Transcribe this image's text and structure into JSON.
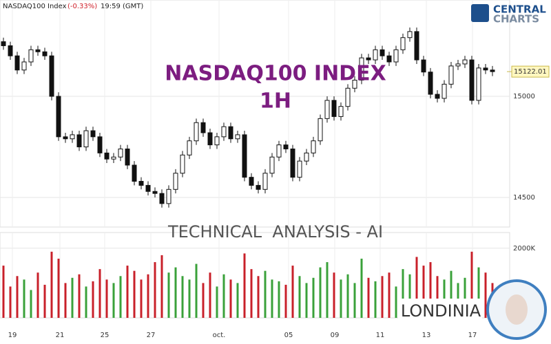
{
  "header": {
    "symbol": "NASDAQ100 Index",
    "change": "(-0.33%)",
    "time": "19:59 (GMT)"
  },
  "logo": {
    "line1": "CENTRAL",
    "line2": "CHARTS"
  },
  "overlay": {
    "title": "NASDAQ100 INDEX",
    "timeframe": "1H",
    "banner": "TECHNICAL  ANALYSIS - AI",
    "brand": "LONDINIA"
  },
  "chart_data": {
    "type": "candlestick",
    "up_color": "#ffffff",
    "down_color": "#111111",
    "grid": true,
    "open": [
      15270,
      15250,
      15200,
      15130,
      15170,
      15230,
      15220,
      15200,
      15000,
      14800,
      14790,
      14810,
      14750,
      14830,
      14800,
      14720,
      14690,
      14700,
      14740,
      14660,
      14580,
      14560,
      14530,
      14520,
      14470,
      14540,
      14620,
      14710,
      14780,
      14870,
      14820,
      14760,
      14800,
      14850,
      14790,
      14810,
      14600,
      14560,
      14540,
      14620,
      14700,
      14760,
      14740,
      14600,
      14680,
      14720,
      14780,
      14890,
      14980,
      14900,
      14950,
      15040,
      15080,
      15190,
      15180,
      15230,
      15200,
      15170,
      15230,
      15290,
      15320,
      15180,
      15120,
      15010,
      14990,
      15060,
      15150,
      15160,
      15180,
      14980,
      15140,
      15130
    ],
    "high": [
      15290,
      15270,
      15220,
      15190,
      15250,
      15250,
      15240,
      15220,
      15020,
      14820,
      14830,
      14830,
      14850,
      14850,
      14820,
      14740,
      14720,
      14760,
      14760,
      14680,
      14600,
      14580,
      14550,
      14540,
      14560,
      14640,
      14730,
      14800,
      14890,
      14890,
      14840,
      14820,
      14870,
      14870,
      14830,
      14830,
      14620,
      14580,
      14640,
      14720,
      14780,
      14780,
      14760,
      14700,
      14740,
      14800,
      14910,
      15000,
      15000,
      14970,
      15060,
      15100,
      15210,
      15210,
      15250,
      15250,
      15220,
      15250,
      15310,
      15340,
      15340,
      15200,
      15140,
      15030,
      15080,
      15170,
      15180,
      15200,
      15200,
      15160,
      15160,
      15150
    ],
    "low": [
      15230,
      15180,
      15110,
      15110,
      15150,
      15200,
      15180,
      14980,
      14780,
      14770,
      14770,
      14730,
      14730,
      14780,
      14700,
      14670,
      14670,
      14680,
      14640,
      14560,
      14540,
      14510,
      14500,
      14450,
      14450,
      14520,
      14600,
      14690,
      14760,
      14800,
      14740,
      14740,
      14780,
      14770,
      14770,
      14580,
      14540,
      14520,
      14520,
      14600,
      14680,
      14720,
      14580,
      14580,
      14660,
      14700,
      14760,
      14870,
      14880,
      14880,
      14930,
      15020,
      15060,
      15160,
      15160,
      15180,
      15150,
      15150,
      15210,
      15270,
      15160,
      15100,
      14990,
      14970,
      14970,
      15040,
      15130,
      15140,
      14960,
      14960,
      15110,
      15100
    ],
    "close": [
      15250,
      15200,
      15130,
      15170,
      15230,
      15220,
      15200,
      15000,
      14800,
      14790,
      14810,
      14750,
      14830,
      14800,
      14720,
      14690,
      14700,
      14740,
      14660,
      14580,
      14560,
      14530,
      14520,
      14470,
      14540,
      14620,
      14710,
      14780,
      14870,
      14820,
      14760,
      14800,
      14850,
      14790,
      14810,
      14600,
      14560,
      14540,
      14620,
      14700,
      14760,
      14740,
      14600,
      14680,
      14720,
      14780,
      14890,
      14980,
      14900,
      14950,
      15040,
      15080,
      15190,
      15180,
      15230,
      15200,
      15170,
      15230,
      15290,
      15320,
      15180,
      15120,
      15010,
      14990,
      15060,
      15150,
      15160,
      15180,
      14980,
      15140,
      15130,
      15122.01
    ],
    "ylim": [
      14354,
      15476
    ],
    "yticks": [
      14500,
      15000
    ],
    "last_price": 15122.01,
    "xlim": [
      -0.5,
      73.5
    ],
    "xticks": [
      {
        "value": 1.3,
        "label": "19"
      },
      {
        "value": 8.2,
        "label": "21"
      },
      {
        "value": 14.7,
        "label": "25"
      },
      {
        "value": 21.4,
        "label": "27"
      },
      {
        "value": 31.3,
        "label": "oct."
      },
      {
        "value": 41.4,
        "label": "05"
      },
      {
        "value": 48.1,
        "label": "09"
      },
      {
        "value": 54.7,
        "label": "11"
      },
      {
        "value": 61.4,
        "label": "13"
      },
      {
        "value": 68.1,
        "label": "17"
      }
    ],
    "volume": {
      "up_color": "#3aa13a",
      "down_color": "#c8202a",
      "values": [
        1500000,
        900000,
        1200000,
        1100000,
        800000,
        1300000,
        950000,
        1900000,
        1700000,
        1000000,
        1150000,
        1250000,
        900000,
        1050000,
        1400000,
        1100000,
        1000000,
        1200000,
        1500000,
        1350000,
        1100000,
        1250000,
        1600000,
        1800000,
        1300000,
        1450000,
        1200000,
        1100000,
        1550000,
        1000000,
        1300000,
        900000,
        1250000,
        1100000,
        1000000,
        1850000,
        1400000,
        1200000,
        1350000,
        1100000,
        1050000,
        950000,
        1500000,
        1200000,
        1000000,
        1150000,
        1450000,
        1600000,
        1300000,
        1100000,
        1250000,
        1000000,
        1700000,
        1150000,
        1050000,
        1200000,
        1300000,
        900000,
        1400000,
        1250000,
        1750000,
        1500000,
        1600000,
        1200000,
        1100000,
        1350000,
        1000000,
        1150000,
        1900000,
        1450000,
        1300000,
        1000000
      ],
      "ylim": [
        0,
        2450000
      ],
      "yticks": [
        {
          "value": 2000000,
          "label": "2000K"
        }
      ]
    }
  }
}
